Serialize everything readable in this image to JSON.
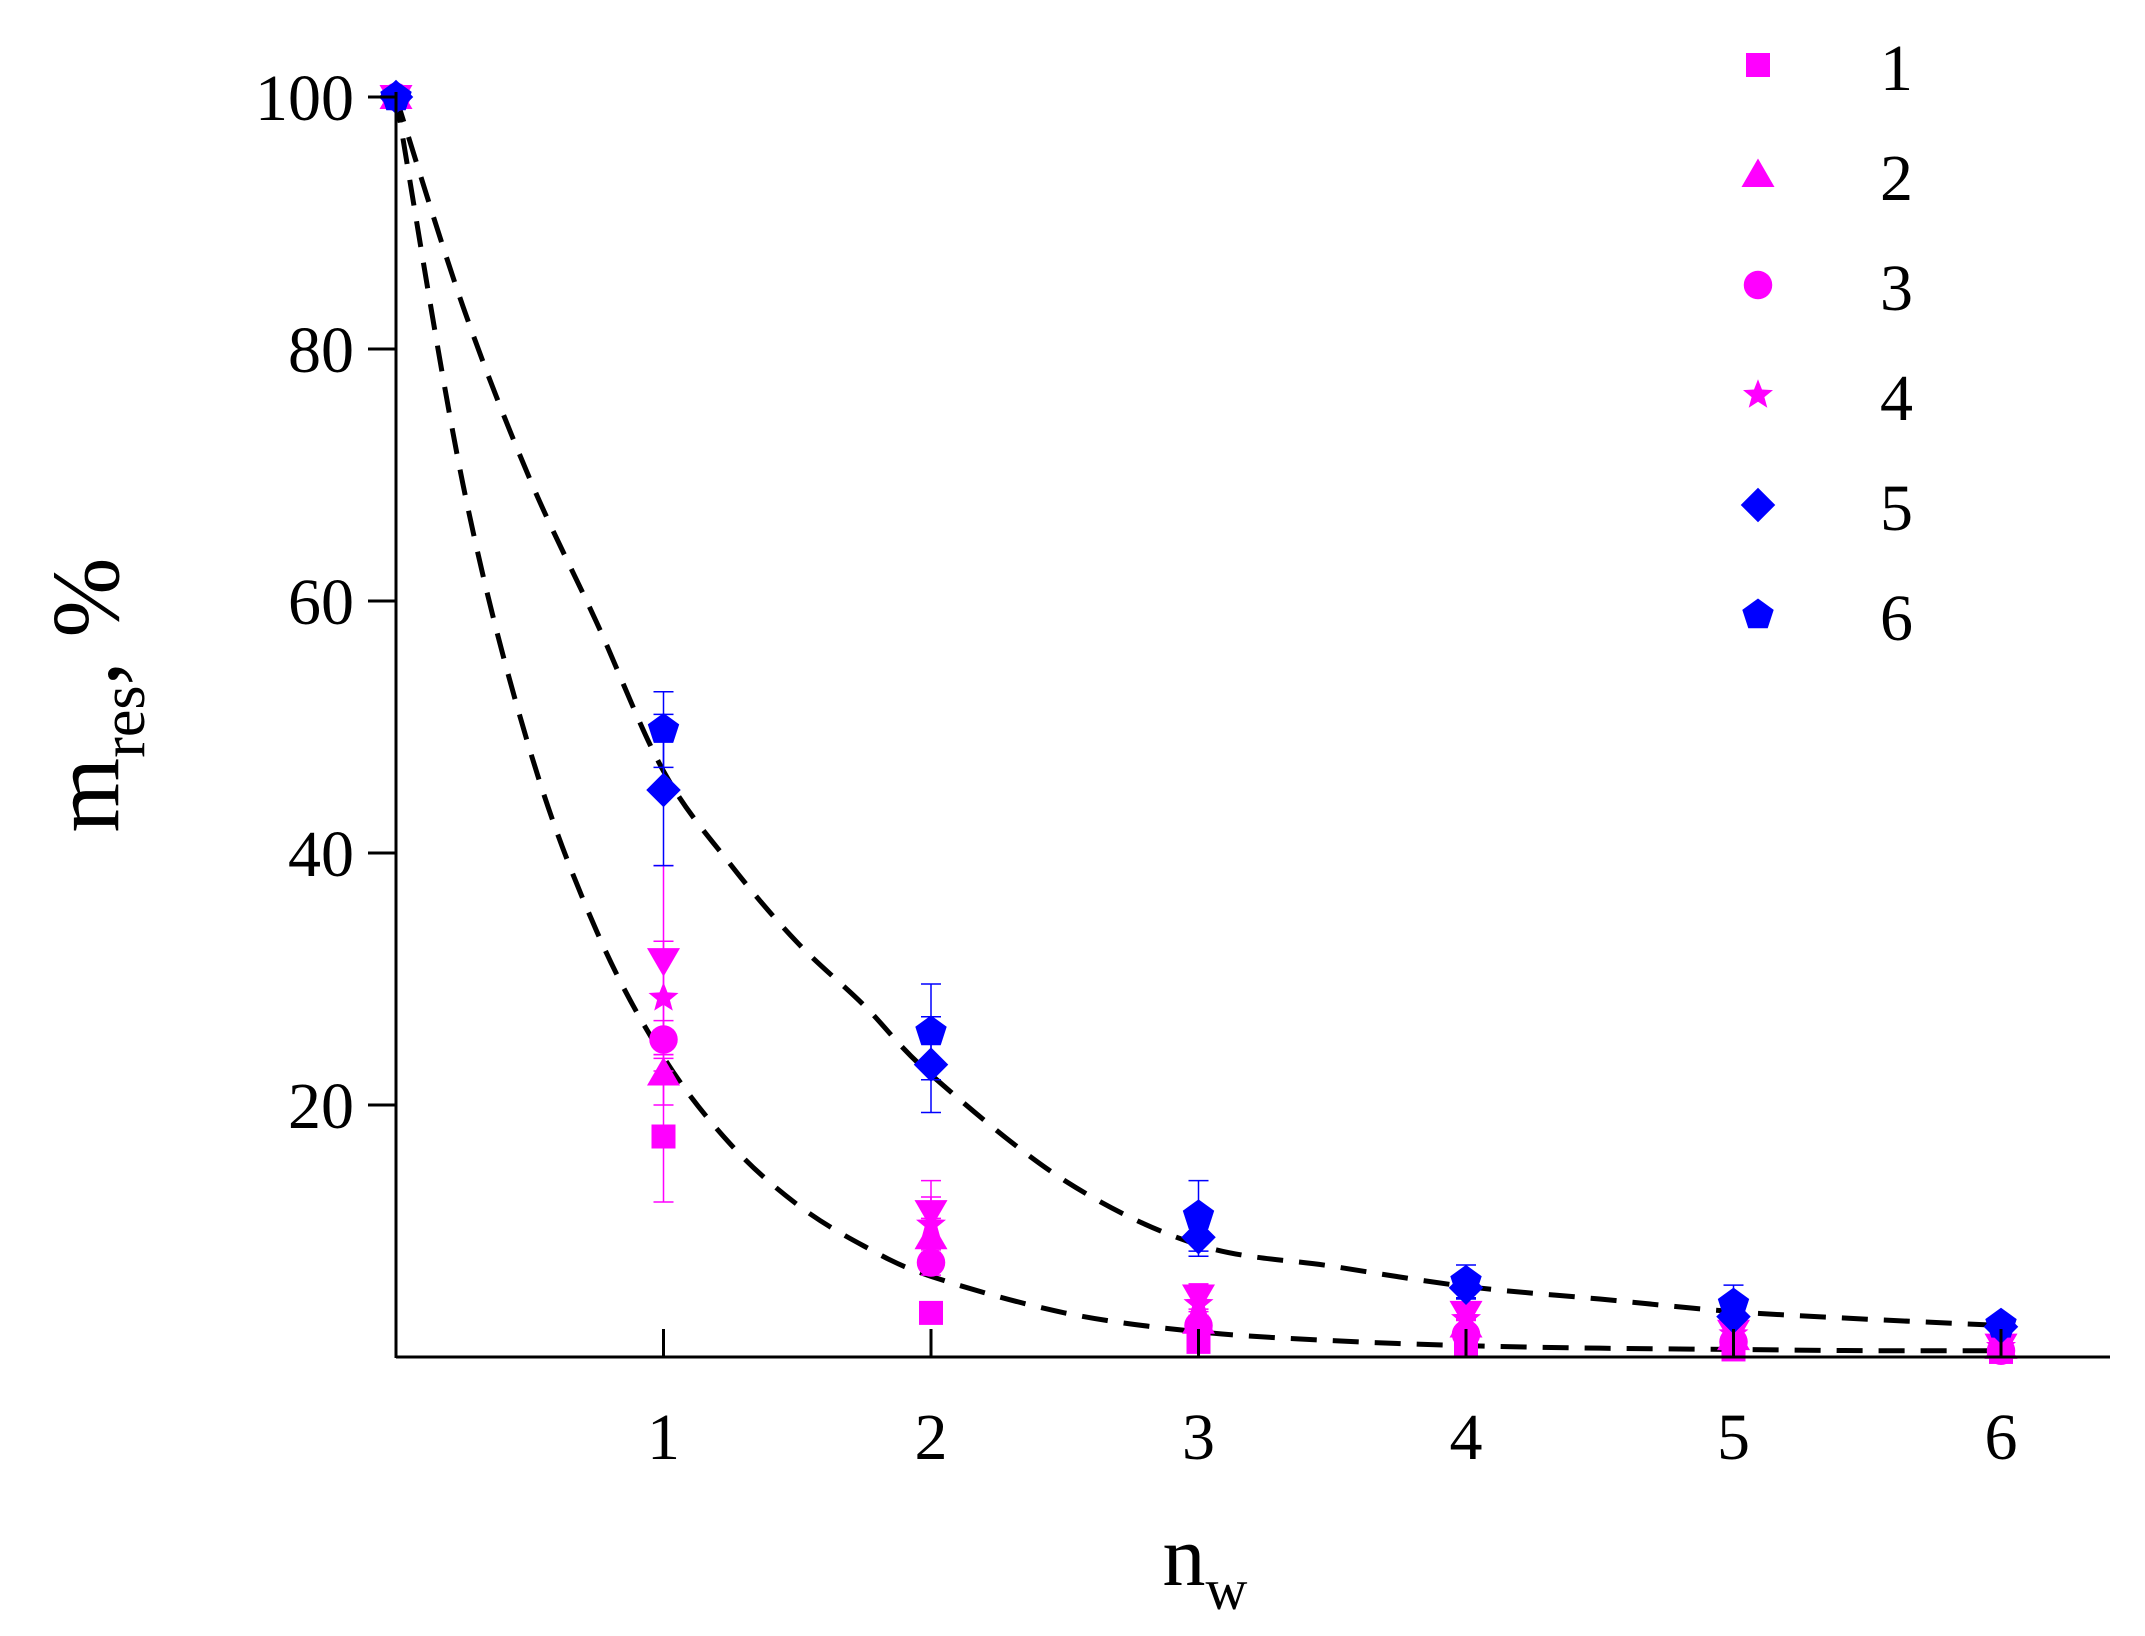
{
  "chart_data": {
    "type": "scatter",
    "title": "",
    "xlabel": {
      "main": "n",
      "sub": "w"
    },
    "ylabel": {
      "main": "m",
      "sub": "res",
      "suffix": ", %"
    },
    "xlim": [
      0,
      6.4
    ],
    "ylim": [
      0,
      100
    ],
    "x_ticks": [
      1,
      2,
      3,
      4,
      5,
      6
    ],
    "y_ticks": [
      20,
      40,
      60,
      80,
      100
    ],
    "grid": false,
    "legend_position": "top-right",
    "series": [
      {
        "name": "1",
        "marker": "square",
        "color": "#ff00ff",
        "x": [
          0,
          1,
          2,
          3,
          4,
          5,
          6
        ],
        "y": [
          100,
          17.5,
          3.5,
          1.2,
          1.0,
          0.6,
          0.4
        ],
        "err": [
          0,
          5.2,
          0.8,
          0.5,
          0.3,
          0.3,
          0.2
        ]
      },
      {
        "name": "2",
        "marker": "triangle-up",
        "color": "#ff00ff",
        "x": [
          0,
          1,
          2,
          3,
          4,
          5,
          6
        ],
        "y": [
          100,
          22.5,
          9.5,
          2.8,
          2.5,
          1.5,
          0.8
        ],
        "err": [
          0,
          2.5,
          1.5,
          0.8,
          0.5,
          0.4,
          0.2
        ]
      },
      {
        "name": "3",
        "marker": "circle",
        "color": "#ff00ff",
        "x": [
          0,
          1,
          2,
          3,
          4,
          5,
          6
        ],
        "y": [
          100,
          25.2,
          7.5,
          2.5,
          1.8,
          1.2,
          0.5
        ],
        "err": [
          0,
          1.5,
          1.0,
          0.6,
          0.4,
          0.3,
          0.2
        ]
      },
      {
        "name": "4",
        "marker": "star",
        "color": "#ff00ff",
        "x": [
          0,
          1,
          2,
          3,
          4,
          5,
          6
        ],
        "y": [
          100,
          28.5,
          10.5,
          4.2,
          3.0,
          1.8,
          0.8
        ],
        "err": [
          0,
          4.5,
          2.2,
          0.9,
          0.6,
          0.4,
          0.2
        ]
      },
      {
        "name": "5",
        "marker": "diamond",
        "color": "#0000ff",
        "x": [
          0,
          1,
          2,
          3,
          4,
          5,
          6
        ],
        "y": [
          100,
          45,
          23.2,
          9.5,
          5.5,
          3.2,
          2.4
        ],
        "err": [
          0,
          6,
          3.8,
          1.5,
          0.9,
          0.7,
          0.4
        ]
      },
      {
        "name": "6",
        "marker": "pentagon",
        "color": "#0000ff",
        "x": [
          0,
          1,
          2,
          3,
          4,
          5,
          6
        ],
        "y": [
          100,
          49.8,
          25.8,
          11.2,
          6.0,
          4.2,
          2.6
        ],
        "err": [
          0,
          3,
          3.8,
          2.8,
          1.3,
          1.5,
          0.5
        ]
      },
      {
        "marker": "triangle-down",
        "color": "#ff00ff",
        "x": [
          0,
          1,
          2,
          3,
          4,
          5,
          6
        ],
        "y": [
          100,
          31.5,
          11.5,
          4.8,
          3.5,
          2.0,
          0.9
        ],
        "err": [
          0,
          7.5,
          2.5,
          1.0,
          0.6,
          0.4,
          0.2
        ]
      }
    ],
    "fit_curves": [
      {
        "style": "dashed",
        "color": "#000000",
        "x": [
          0,
          0.25,
          0.5,
          0.75,
          1,
          1.25,
          1.5,
          1.75,
          2,
          2.5,
          3,
          3.5,
          4,
          4.5,
          5,
          5.5,
          6
        ],
        "y": [
          100,
          69.3,
          48.2,
          33.8,
          23.8,
          16.9,
          12.1,
          8.8,
          6.4,
          3.5,
          2.0,
          1.3,
          0.9,
          0.7,
          0.6,
          0.5,
          0.5
        ]
      },
      {
        "style": "dashed",
        "color": "#000000",
        "x": [
          0,
          0.25,
          0.5,
          0.75,
          1,
          1.25,
          1.5,
          1.75,
          2,
          2.5,
          3,
          3.5,
          4,
          4.5,
          5,
          5.5,
          6
        ],
        "y": [
          100,
          83.4,
          69.7,
          58.3,
          46.5,
          39.1,
          32.9,
          27.9,
          22.4,
          14.0,
          8.9,
          7.2,
          5.6,
          4.6,
          3.6,
          3.0,
          2.5
        ]
      }
    ]
  }
}
